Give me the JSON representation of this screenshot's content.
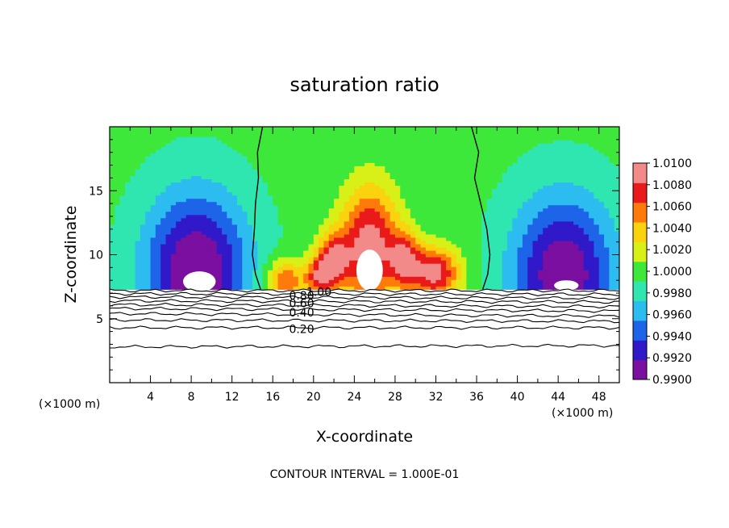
{
  "chart_data": {
    "type": "heatmap",
    "title": "saturation ratio",
    "xlabel": "X-coordinate",
    "ylabel": "Z-coordinate",
    "x_unit_left": "(×1000 m)",
    "x_unit_right": "(×1000 m)",
    "xlim": [
      0,
      50
    ],
    "ylim": [
      0,
      20
    ],
    "x_ticks": [
      4,
      8,
      12,
      16,
      20,
      24,
      28,
      32,
      36,
      40,
      44,
      48
    ],
    "x_tick_labels": [
      "4",
      "8",
      "12",
      "16",
      "20",
      "24",
      "28",
      "32",
      "36",
      "40",
      "44",
      "48"
    ],
    "y_ticks": [
      5,
      10,
      15
    ],
    "y_tick_labels": [
      "5",
      "10",
      "15"
    ],
    "colorbar": {
      "levels": [
        0.99,
        0.992,
        0.994,
        0.996,
        0.998,
        1.0,
        1.002,
        1.004,
        1.006,
        1.008,
        1.01
      ],
      "labels": [
        "0.9900",
        "0.9920",
        "0.9940",
        "0.9960",
        "0.9980",
        "1.0000",
        "1.0020",
        "1.0040",
        "1.0060",
        "1.0080",
        "1.0100"
      ],
      "colors": [
        "#7a0fa0",
        "#3019c8",
        "#1d64e8",
        "#2dbcef",
        "#2fe6b0",
        "#3ee83a",
        "#d8f018",
        "#fbd20e",
        "#ff7a0a",
        "#ea1a1a",
        "#f38a8a"
      ]
    },
    "contour_interval_text": "CONTOUR INTERVAL = 1.000E-01",
    "contour_labels": [
      {
        "text": "1.00",
        "x": 19.3,
        "z": 7.1
      },
      {
        "text": "0.80",
        "x": 17.6,
        "z": 6.8
      },
      {
        "text": "0.60",
        "x": 17.6,
        "z": 6.2
      },
      {
        "text": "0.40",
        "x": 17.6,
        "z": 5.5
      },
      {
        "text": "0.20",
        "x": 17.6,
        "z": 4.2
      }
    ],
    "cloud_base_z": 7.3,
    "unity_contour_left_x": [
      15.0,
      14.5,
      14.6,
      14.3,
      14.2,
      14.0,
      14.3,
      14.8
    ],
    "unity_contour_right_x": [
      35.5,
      36.2,
      35.8,
      36.4,
      37.0,
      37.3,
      37.1,
      36.6
    ],
    "unity_contour_z": [
      20,
      18,
      16,
      14,
      12,
      10,
      8.5,
      7.3
    ],
    "clear_air_contours": [
      {
        "value": 1.0,
        "z_left": 7.2,
        "z_right": 7.2
      },
      {
        "value": 0.9,
        "z_left": 6.95,
        "z_right": 6.9
      },
      {
        "value": 0.8,
        "z_left": 6.7,
        "z_right": 6.6
      },
      {
        "value": 0.7,
        "z_left": 6.4,
        "z_right": 6.3
      },
      {
        "value": 0.6,
        "z_left": 6.1,
        "z_right": 5.95
      },
      {
        "value": 0.5,
        "z_left": 5.8,
        "z_right": 5.6
      },
      {
        "value": 0.4,
        "z_left": 5.4,
        "z_right": 5.2
      },
      {
        "value": 0.3,
        "z_left": 4.9,
        "z_right": 4.8
      },
      {
        "value": 0.2,
        "z_left": 4.3,
        "z_right": 4.3
      },
      {
        "value": 0.1,
        "z_left": 2.8,
        "z_right": 2.9
      }
    ],
    "field_features": [
      {
        "kind": "dry",
        "x": 8.5,
        "z": 8.8,
        "rx": 5.0,
        "rz": 6.0,
        "amp": -1.0
      },
      {
        "kind": "dry",
        "x": 44.5,
        "z": 8.5,
        "rx": 5.0,
        "rz": 6.0,
        "amp": -0.95
      },
      {
        "kind": "moist",
        "x": 25.5,
        "z": 10.8,
        "rx": 2.8,
        "rz": 4.5,
        "amp": 1.0
      },
      {
        "kind": "moist",
        "x": 22.0,
        "z": 9.6,
        "rx": 1.6,
        "rz": 2.2,
        "amp": 0.8
      },
      {
        "kind": "moist",
        "x": 29.0,
        "z": 9.6,
        "rx": 1.6,
        "rz": 2.2,
        "amp": 0.75
      },
      {
        "kind": "moist",
        "x": 32.0,
        "z": 8.6,
        "rx": 2.3,
        "rz": 2.0,
        "amp": 0.95
      },
      {
        "kind": "moist",
        "x": 17.2,
        "z": 8.0,
        "rx": 1.8,
        "rz": 1.6,
        "amp": 0.7
      },
      {
        "kind": "moist",
        "x": 20.5,
        "z": 8.3,
        "rx": 1.4,
        "rz": 1.6,
        "amp": 0.7
      }
    ]
  }
}
